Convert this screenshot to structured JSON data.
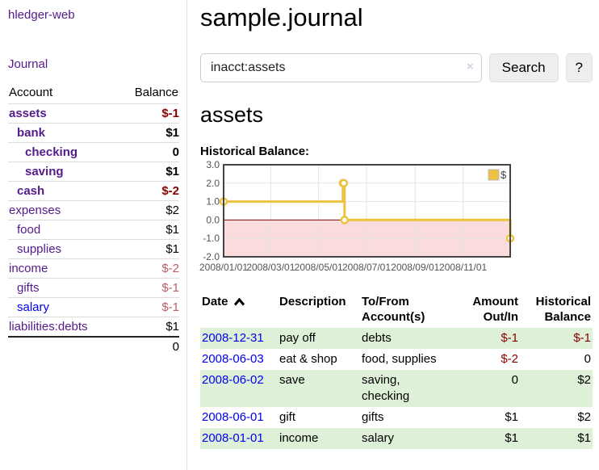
{
  "brand": "hledger-web",
  "nav": {
    "journal_label": "Journal"
  },
  "header": {
    "title": "sample.journal"
  },
  "search": {
    "value": "inacct:assets",
    "clear_icon": "×",
    "search_label": "Search",
    "help_label": "?"
  },
  "account_page": {
    "heading": "assets",
    "chart_title": "Historical Balance:"
  },
  "colors": {
    "link_visited_purple": "#551a8b",
    "link_blue": "#0000ee",
    "negative_strong": "#8b0000",
    "negative_soft": "#c05e5e",
    "row_stripe_green": "#dff0d8",
    "series_gold": "#edc240"
  },
  "sidebar": {
    "col_account": "Account",
    "col_balance": "Balance",
    "accounts": [
      {
        "name": "assets",
        "depth": 0,
        "balance": "$-1",
        "emph": true,
        "neg": "strong",
        "link": "purple"
      },
      {
        "name": "bank",
        "depth": 1,
        "balance": "$1",
        "emph": true,
        "neg": "",
        "link": "purple"
      },
      {
        "name": "checking",
        "depth": 2,
        "balance": "0",
        "emph": true,
        "neg": "",
        "link": "purple"
      },
      {
        "name": "saving",
        "depth": 2,
        "balance": "$1",
        "emph": true,
        "neg": "",
        "link": "purple"
      },
      {
        "name": "cash",
        "depth": 1,
        "balance": "$-2",
        "emph": true,
        "neg": "strong",
        "link": "purple"
      },
      {
        "name": "expenses",
        "depth": 0,
        "balance": "$2",
        "emph": false,
        "neg": "",
        "link": "purple"
      },
      {
        "name": "food",
        "depth": 1,
        "balance": "$1",
        "emph": false,
        "neg": "",
        "link": "purple"
      },
      {
        "name": "supplies",
        "depth": 1,
        "balance": "$1",
        "emph": false,
        "neg": "",
        "link": "purple"
      },
      {
        "name": "income",
        "depth": 0,
        "balance": "$-2",
        "emph": false,
        "neg": "soft",
        "link": "purple"
      },
      {
        "name": "gifts",
        "depth": 1,
        "balance": "$-1",
        "emph": false,
        "neg": "soft",
        "link": "purple"
      },
      {
        "name": "salary",
        "depth": 1,
        "balance": "$-1",
        "emph": false,
        "neg": "soft",
        "link": "blue"
      },
      {
        "name": "liabilities:debts",
        "depth": 0,
        "balance": "$1",
        "emph": false,
        "neg": "",
        "link": "purple"
      }
    ],
    "total_balance": "0"
  },
  "chart_data": {
    "type": "line",
    "step": true,
    "title": "Historical Balance",
    "series": [
      {
        "name": "$",
        "color": "#edc240",
        "points": [
          [
            "2008/01/01",
            1
          ],
          [
            "2008/06/01",
            2
          ],
          [
            "2008/06/02",
            2
          ],
          [
            "2008/06/03",
            0
          ],
          [
            "2008/12/31",
            -1
          ]
        ]
      }
    ],
    "x_tick_labels": [
      "2008/01/01",
      "2008/03/01",
      "2008/05/01",
      "2008/07/01",
      "2008/09/01",
      "2008/11/01"
    ],
    "y_tick_labels": [
      "3.0",
      "2.0",
      "1.0",
      "0.0",
      "-1.0",
      "-2.0"
    ],
    "xlim": [
      "2008/01/01",
      "2008/12/31"
    ],
    "ylim": [
      -2,
      3
    ],
    "grid": true,
    "legend_position": "top-right",
    "legend": [
      {
        "label": "$",
        "color": "#edc240"
      }
    ],
    "zero_line_color": "#8b0000",
    "negative_fill": "#fbdcdc"
  },
  "register": {
    "columns": [
      "Date",
      "Description",
      "To/From Account(s)",
      "Amount Out/In",
      "Historical Balance"
    ],
    "sort": {
      "column": "Date",
      "direction": "ascending"
    },
    "rows": [
      {
        "date": "2008-12-31",
        "description": "pay off",
        "accounts": "debts",
        "amount": "$-1",
        "balance": "$-1",
        "amount_negative": true,
        "balance_negative": true
      },
      {
        "date": "2008-06-03",
        "description": "eat & shop",
        "accounts": "food, supplies",
        "amount": "$-2",
        "balance": "0",
        "amount_negative": true,
        "balance_negative": false
      },
      {
        "date": "2008-06-02",
        "description": "save",
        "accounts": "saving, checking",
        "amount": "0",
        "balance": "$2",
        "amount_negative": false,
        "balance_negative": false
      },
      {
        "date": "2008-06-01",
        "description": "gift",
        "accounts": "gifts",
        "amount": "$1",
        "balance": "$2",
        "amount_negative": false,
        "balance_negative": false
      },
      {
        "date": "2008-01-01",
        "description": "income",
        "accounts": "salary",
        "amount": "$1",
        "balance": "$1",
        "amount_negative": false,
        "balance_negative": false
      }
    ]
  }
}
